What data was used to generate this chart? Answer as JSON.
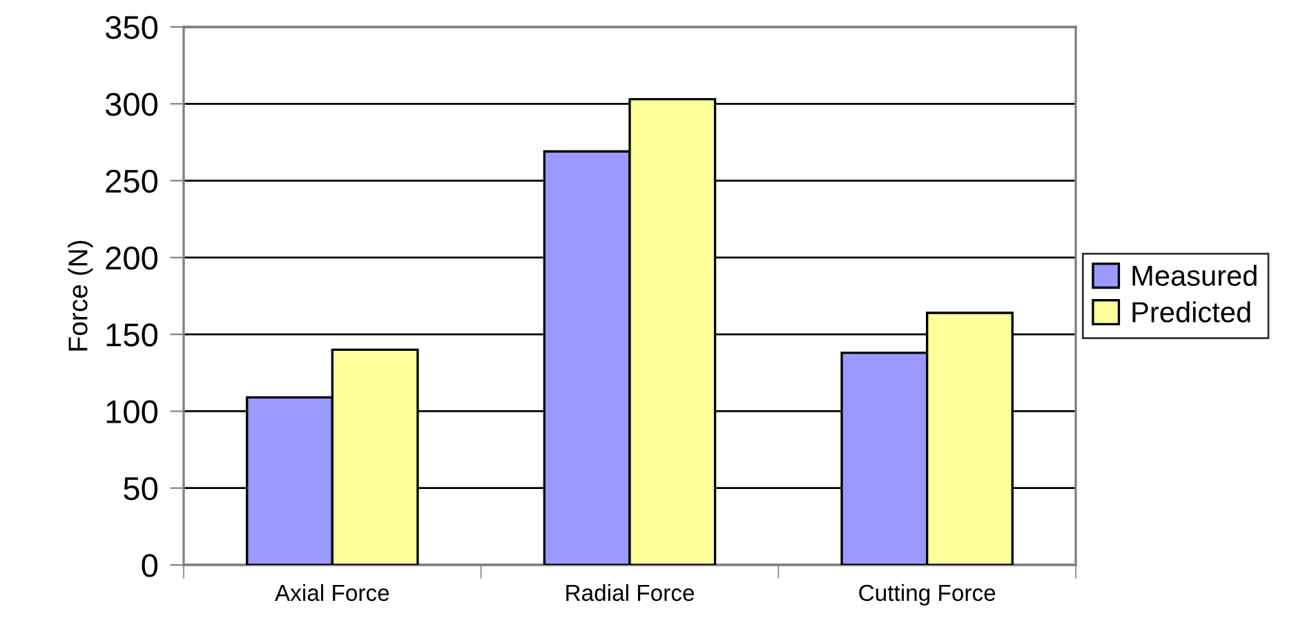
{
  "chart_data": {
    "type": "bar",
    "ylabel": "Force (N)",
    "categories": [
      "Axial Force",
      "Radial Force",
      "Cutting Force"
    ],
    "series": [
      {
        "name": "Measured",
        "color": "#9999ff",
        "values": [
          109,
          269,
          138
        ]
      },
      {
        "name": "Predicted",
        "color": "#ffff99",
        "values": [
          140,
          303,
          164
        ]
      }
    ],
    "ylim": [
      0,
      350
    ],
    "yticks": [
      0,
      50,
      100,
      150,
      200,
      250,
      300,
      350
    ],
    "grid": "y",
    "legend": "right"
  }
}
